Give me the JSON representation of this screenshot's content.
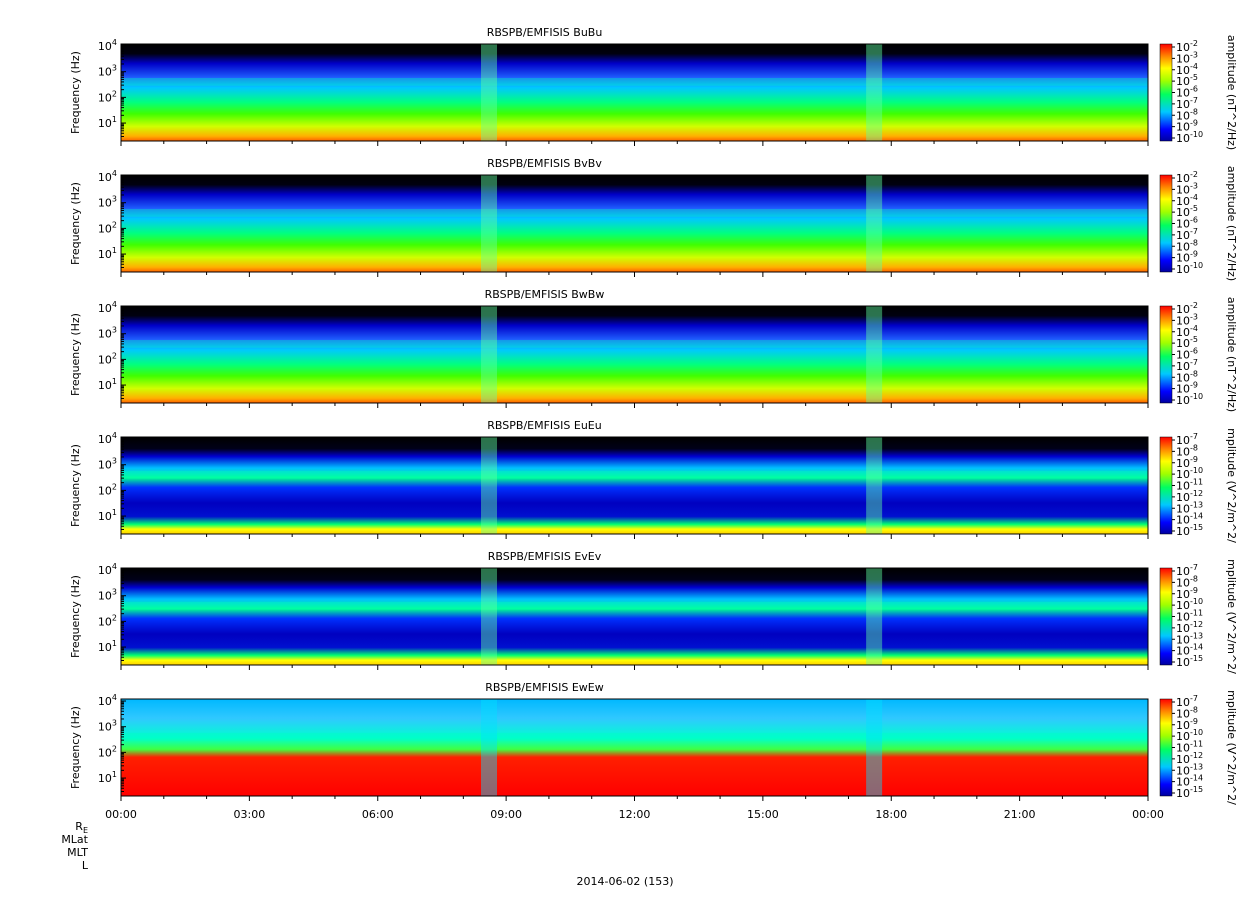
{
  "chart_data": {
    "type": "heatmap",
    "x_tick_labels": [
      "00:00",
      "03:00",
      "06:00",
      "09:00",
      "12:00",
      "15:00",
      "18:00",
      "21:00",
      "00:00"
    ],
    "x_range_hours": [
      0,
      24
    ],
    "y_scale": "log",
    "y_range_hz": [
      2,
      12000
    ],
    "date_label": "2014-06-02 (153)",
    "ephemeris_labels": [
      "R",
      "MLat",
      "MLT",
      "L"
    ],
    "ephemeris_subscript": "E",
    "colorscale": "rainbow (blue to red)",
    "panels": [
      {
        "title": "RBSPB/EMFISIS  BuBu",
        "ylabel": "Frequency (Hz)",
        "yticks": [
          {
            "base": "10",
            "exp": "1",
            "val": 10
          },
          {
            "base": "10",
            "exp": "2",
            "val": 100
          },
          {
            "base": "10",
            "exp": "3",
            "val": 1000
          },
          {
            "base": "10",
            "exp": "4",
            "val": 10000
          }
        ],
        "colorbar_label": "amplitude (nT^2/Hz)",
        "colorbar_exponents": [
          "-2",
          "-3",
          "-4",
          "-5",
          "-6",
          "-7",
          "-8",
          "-9",
          "-10"
        ]
      },
      {
        "title": "RBSPB/EMFISIS  BvBv",
        "ylabel": "Frequency (Hz)",
        "yticks": [
          {
            "base": "10",
            "exp": "1",
            "val": 10
          },
          {
            "base": "10",
            "exp": "2",
            "val": 100
          },
          {
            "base": "10",
            "exp": "3",
            "val": 1000
          },
          {
            "base": "10",
            "exp": "4",
            "val": 10000
          }
        ],
        "colorbar_label": "amplitude (nT^2/Hz)",
        "colorbar_exponents": [
          "-2",
          "-3",
          "-4",
          "-5",
          "-6",
          "-7",
          "-8",
          "-9",
          "-10"
        ]
      },
      {
        "title": "RBSPB/EMFISIS  BwBw",
        "ylabel": "Frequency (Hz)",
        "yticks": [
          {
            "base": "10",
            "exp": "1",
            "val": 10
          },
          {
            "base": "10",
            "exp": "2",
            "val": 100
          },
          {
            "base": "10",
            "exp": "3",
            "val": 1000
          },
          {
            "base": "10",
            "exp": "4",
            "val": 10000
          }
        ],
        "colorbar_label": "amplitude (nT^2/Hz)",
        "colorbar_exponents": [
          "-2",
          "-3",
          "-4",
          "-5",
          "-6",
          "-7",
          "-8",
          "-9",
          "-10"
        ]
      },
      {
        "title": "RBSPB/EMFISIS  EuEu",
        "ylabel": "Frequency (Hz)",
        "yticks": [
          {
            "base": "10",
            "exp": "1",
            "val": 10
          },
          {
            "base": "10",
            "exp": "2",
            "val": 100
          },
          {
            "base": "10",
            "exp": "3",
            "val": 1000
          },
          {
            "base": "10",
            "exp": "4",
            "val": 10000
          }
        ],
        "colorbar_label": "mplitude (V^2/m^2/",
        "colorbar_exponents": [
          "-7",
          "-8",
          "-9",
          "-10",
          "-11",
          "-12",
          "-13",
          "-14",
          "-15"
        ]
      },
      {
        "title": "RBSPB/EMFISIS  EvEv",
        "ylabel": "Frequency (Hz)",
        "yticks": [
          {
            "base": "10",
            "exp": "1",
            "val": 10
          },
          {
            "base": "10",
            "exp": "2",
            "val": 100
          },
          {
            "base": "10",
            "exp": "3",
            "val": 1000
          },
          {
            "base": "10",
            "exp": "4",
            "val": 10000
          }
        ],
        "colorbar_label": "mplitude (V^2/m^2/",
        "colorbar_exponents": [
          "-7",
          "-8",
          "-9",
          "-10",
          "-11",
          "-12",
          "-13",
          "-14",
          "-15"
        ]
      },
      {
        "title": "RBSPB/EMFISIS  EwEw",
        "ylabel": "Frequency (Hz)",
        "yticks": [
          {
            "base": "10",
            "exp": "1",
            "val": 10
          },
          {
            "base": "10",
            "exp": "2",
            "val": 100
          },
          {
            "base": "10",
            "exp": "3",
            "val": 1000
          },
          {
            "base": "10",
            "exp": "4",
            "val": 10000
          }
        ],
        "colorbar_label": "mplitude (V^2/m^2/",
        "colorbar_exponents": [
          "-7",
          "-8",
          "-9",
          "-10",
          "-11",
          "-12",
          "-13",
          "-14",
          "-15"
        ]
      }
    ]
  }
}
